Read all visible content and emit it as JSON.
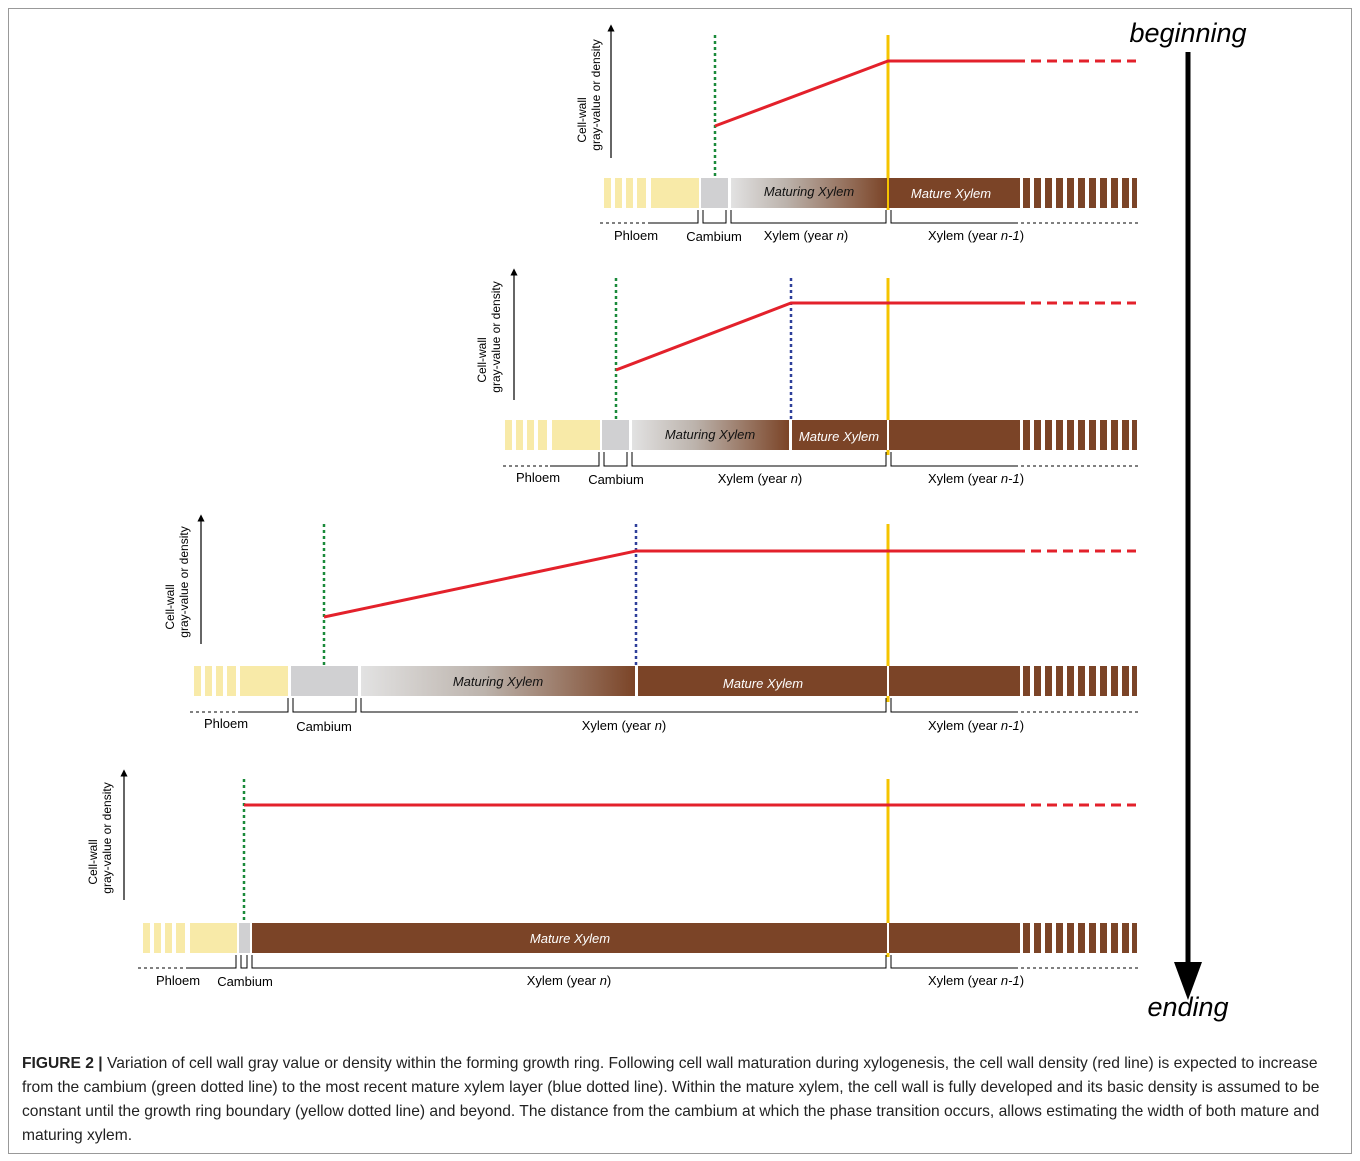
{
  "direction": {
    "top_label": "beginning",
    "bottom_label": "ending"
  },
  "y_axis_label": {
    "line1": "Cell-wall",
    "line2": "gray-value or density"
  },
  "zone_labels": {
    "phloem": "Phloem",
    "cambium": "Cambium",
    "xylem_n_prefix": "Xylem (year ",
    "xylem_n_italic": "n",
    "xylem_n1_italic": "n-1",
    "suffix": ")",
    "maturing": "Maturing Xylem",
    "mature": "Mature Xylem"
  },
  "stages": [
    {
      "stage": 1,
      "has_maturing_zone": true,
      "has_mature_zone_year_n": false,
      "density_profile": "rising from cambium to ring boundary, then constant"
    },
    {
      "stage": 2,
      "has_maturing_zone": true,
      "has_mature_zone_year_n": true,
      "density_profile": "rising from cambium to mature xylem, then constant"
    },
    {
      "stage": 3,
      "has_maturing_zone": true,
      "has_mature_zone_year_n": true,
      "density_profile": "rising from cambium to mature xylem, then constant"
    },
    {
      "stage": 4,
      "has_maturing_zone": false,
      "has_mature_zone_year_n": true,
      "density_profile": "constant"
    }
  ],
  "colors": {
    "phloem": "#f8eaa8",
    "cambium": "#d0d0d2",
    "mature": "#7b4427",
    "density_line": "#e3212b",
    "cambium_line": "#1a8a3a",
    "mature_line": "#2e3f9a",
    "ring_boundary": "#f5c400"
  },
  "caption": {
    "label": "FIGURE 2 |",
    "text": " Variation of cell wall gray value or density within the forming growth ring. Following cell wall maturation during xylogenesis, the cell wall density (red line) is expected to increase from the cambium (green dotted line) to the most recent mature xylem layer (blue dotted line). Within the mature xylem, the cell wall is fully developed and its basic density is assumed to be constant until the growth ring boundary (yellow dotted line) and beyond. The distance from the cambium at which the phase transition occurs, allows estimating the width of both mature and maturing xylem."
  }
}
